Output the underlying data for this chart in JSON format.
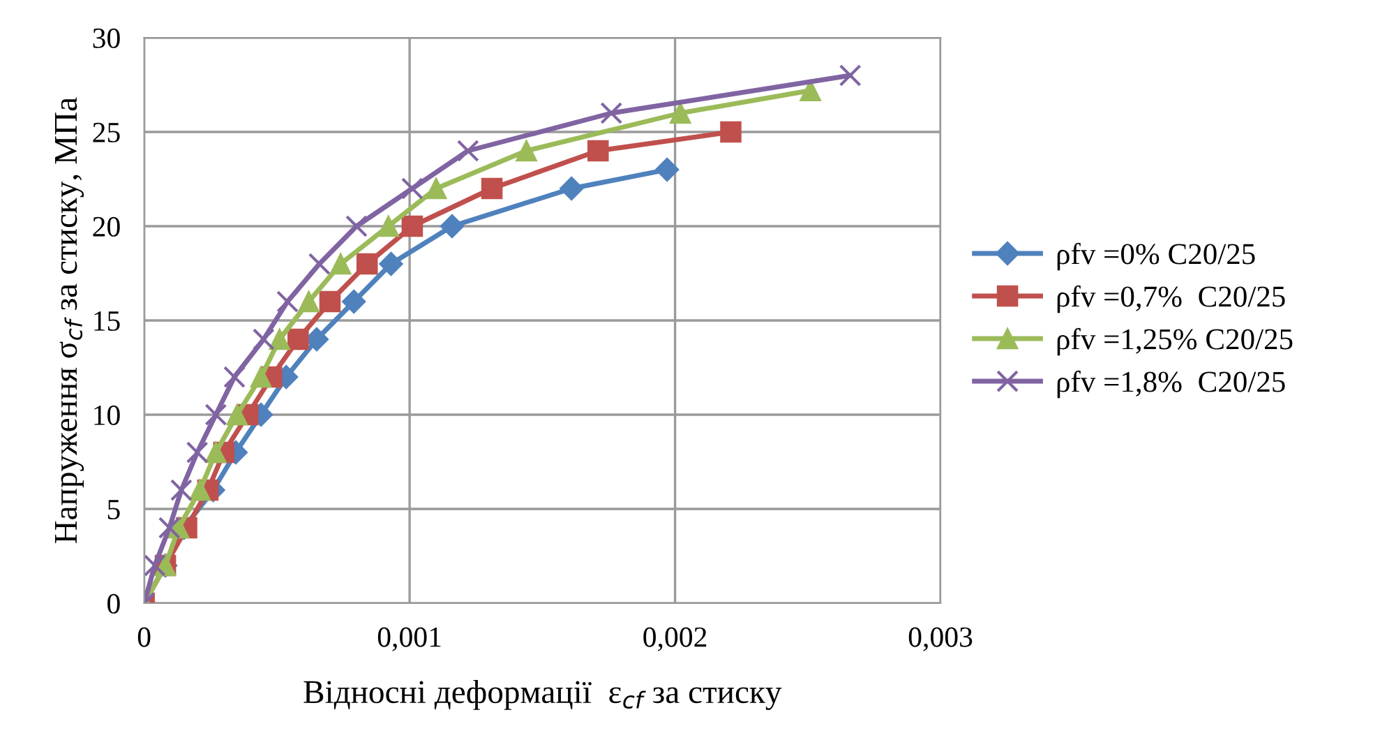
{
  "chart_data": {
    "type": "line",
    "xlabel": "Відносні деформації  ε$_{cf}$ за стиску",
    "ylabel": "Напруження σ$_{cf}$ за стиску, МПа",
    "xlim": [
      0,
      0.003
    ],
    "xticks": [
      {
        "value": 0,
        "label": "0"
      },
      {
        "value": 0.001,
        "label": "0,001"
      },
      {
        "value": 0.002,
        "label": "0,002"
      },
      {
        "value": 0.003,
        "label": "0,003"
      }
    ],
    "ylim": [
      0,
      30
    ],
    "yticks": [
      0,
      5,
      10,
      15,
      20,
      25,
      30
    ],
    "grid": true,
    "legend": "right",
    "series": [
      {
        "name": "ρfv =0% C20/25",
        "color": "#4f81bd",
        "marker": "diamond",
        "x": [
          0,
          8e-05,
          0.00015,
          0.00026,
          0.000345,
          0.00044,
          0.000535,
          0.00065,
          0.00079,
          0.00093,
          0.00116,
          0.00161,
          0.00197
        ],
        "values": [
          0,
          2,
          4,
          6,
          8,
          10,
          12,
          14,
          16,
          18,
          20,
          22,
          23
        ]
      },
      {
        "name": "ρfv =0,7%  C20/25",
        "color": "#c0504d",
        "marker": "square",
        "x": [
          0,
          8e-05,
          0.00016,
          0.00024,
          0.0003,
          0.00039,
          0.00048,
          0.00058,
          0.0007,
          0.00084,
          0.00101,
          0.00131,
          0.00171,
          0.00221
        ],
        "values": [
          0,
          2,
          4,
          6,
          8,
          10,
          12,
          14,
          16,
          18,
          20,
          22,
          24,
          25
        ]
      },
      {
        "name": "ρfv =1,25% C20/25",
        "color": "#9bbb59",
        "marker": "triangle",
        "x": [
          0,
          8e-05,
          0.00013,
          0.00021,
          0.00027,
          0.00035,
          0.00044,
          0.00051,
          0.00062,
          0.00074,
          0.00092,
          0.0011,
          0.00144,
          0.00202,
          0.00251
        ],
        "values": [
          0,
          2,
          4,
          6,
          8,
          10,
          12,
          14,
          16,
          18,
          20,
          22,
          24,
          26,
          27.2
        ]
      },
      {
        "name": "ρfv =1,8%  C20/25",
        "color": "#8064a2",
        "marker": "cross",
        "x": [
          0,
          4e-05,
          9.5e-05,
          0.00014,
          0.0002,
          0.00027,
          0.00034,
          0.00045,
          0.00054,
          0.00066,
          0.0008,
          0.00101,
          0.00122,
          0.00176,
          0.00266
        ],
        "values": [
          0,
          2,
          4,
          6,
          8,
          10,
          12,
          14,
          16,
          18,
          20,
          22,
          24,
          26,
          28
        ]
      }
    ]
  }
}
